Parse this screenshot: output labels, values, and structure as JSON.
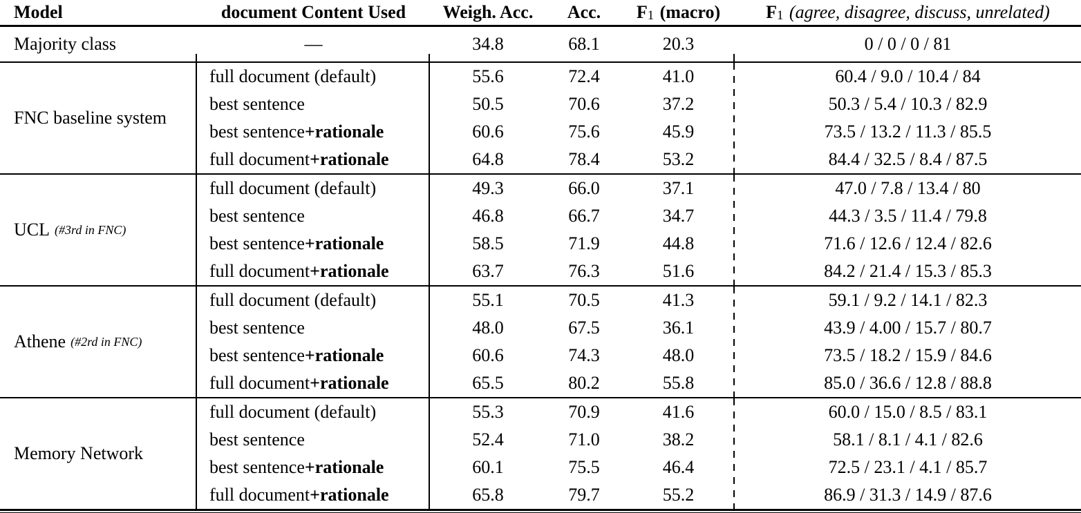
{
  "header": {
    "model": "Model",
    "content_used": "document Content Used",
    "weigh_acc": "Weigh. Acc.",
    "acc": "Acc.",
    "f1_macro": {
      "symbol": "F",
      "sub": "1",
      "label": "(macro)"
    },
    "f1_classes": {
      "symbol": "F",
      "sub": "1",
      "label": "(agree, disagree, discuss, unrelated)"
    }
  },
  "majority": {
    "model": "Majority class",
    "content": "—",
    "weigh_acc": "34.8",
    "acc": "68.1",
    "f1_macro": "20.3",
    "f1_classes": "0 / 0 / 0 / 81"
  },
  "groups": [
    {
      "model": "FNC baseline system",
      "note": "",
      "rows": [
        {
          "content": "full document (default)",
          "content_bold": "",
          "weigh_acc": "55.6",
          "acc": "72.4",
          "f1_macro": "41.0",
          "f1_classes": "60.4 / 9.0 / 10.4 / 84"
        },
        {
          "content": "best sentence",
          "content_bold": "",
          "weigh_acc": "50.5",
          "acc": "70.6",
          "f1_macro": "37.2",
          "f1_classes": "50.3 / 5.4 / 10.3 / 82.9"
        },
        {
          "content": "best sentence ",
          "content_bold": "+rationale",
          "weigh_acc": "60.6",
          "acc": "75.6",
          "f1_macro": "45.9",
          "f1_classes": "73.5 / 13.2 / 11.3 / 85.5"
        },
        {
          "content": "full document ",
          "content_bold": "+rationale",
          "weigh_acc": "64.8",
          "acc": "78.4",
          "f1_macro": "53.2",
          "f1_classes": "84.4 / 32.5 / 8.4 / 87.5"
        }
      ]
    },
    {
      "model": "UCL",
      "note": "(#3rd in FNC)",
      "rows": [
        {
          "content": "full document (default)",
          "content_bold": "",
          "weigh_acc": "49.3",
          "acc": "66.0",
          "f1_macro": "37.1",
          "f1_classes": "47.0 / 7.8 / 13.4 / 80"
        },
        {
          "content": "best sentence",
          "content_bold": "",
          "weigh_acc": "46.8",
          "acc": "66.7",
          "f1_macro": "34.7",
          "f1_classes": "44.3 / 3.5 / 11.4 / 79.8"
        },
        {
          "content": "best sentence ",
          "content_bold": "+rationale",
          "weigh_acc": "58.5",
          "acc": "71.9",
          "f1_macro": "44.8",
          "f1_classes": "71.6 / 12.6 / 12.4 / 82.6"
        },
        {
          "content": "full document ",
          "content_bold": "+rationale",
          "weigh_acc": "63.7",
          "acc": "76.3",
          "f1_macro": "51.6",
          "f1_classes": "84.2 / 21.4 / 15.3 / 85.3"
        }
      ]
    },
    {
      "model": "Athene",
      "note": "(#2rd in FNC)",
      "rows": [
        {
          "content": "full document (default)",
          "content_bold": "",
          "weigh_acc": "55.1",
          "acc": "70.5",
          "f1_macro": "41.3",
          "f1_classes": "59.1 / 9.2 / 14.1 / 82.3"
        },
        {
          "content": "best sentence",
          "content_bold": "",
          "weigh_acc": "48.0",
          "acc": "67.5",
          "f1_macro": "36.1",
          "f1_classes": "43.9 / 4.00 / 15.7 / 80.7"
        },
        {
          "content": "best sentence ",
          "content_bold": "+rationale",
          "weigh_acc": "60.6",
          "acc": "74.3",
          "f1_macro": "48.0",
          "f1_classes": "73.5 / 18.2 / 15.9 / 84.6"
        },
        {
          "content": "full document ",
          "content_bold": "+rationale",
          "weigh_acc": "65.5",
          "acc": "80.2",
          "f1_macro": "55.8",
          "f1_classes": "85.0 / 36.6 / 12.8 / 88.8"
        }
      ]
    },
    {
      "model": "Memory Network",
      "note": "",
      "rows": [
        {
          "content": "full document (default)",
          "content_bold": "",
          "weigh_acc": "55.3",
          "acc": "70.9",
          "f1_macro": "41.6",
          "f1_classes": "60.0 / 15.0 / 8.5 / 83.1"
        },
        {
          "content": "best sentence",
          "content_bold": "",
          "weigh_acc": "52.4",
          "acc": "71.0",
          "f1_macro": "38.2",
          "f1_classes": "58.1 / 8.1 / 4.1 / 82.6"
        },
        {
          "content": "best sentence ",
          "content_bold": "+rationale",
          "weigh_acc": "60.1",
          "acc": "75.5",
          "f1_macro": "46.4",
          "f1_classes": "72.5 / 23.1 / 4.1 / 85.7"
        },
        {
          "content": "full document ",
          "content_bold": "+rationale",
          "weigh_acc": "65.8",
          "acc": "79.7",
          "f1_macro": "55.2",
          "f1_classes": "86.9 / 31.3 / 14.9 / 87.6"
        }
      ]
    }
  ]
}
